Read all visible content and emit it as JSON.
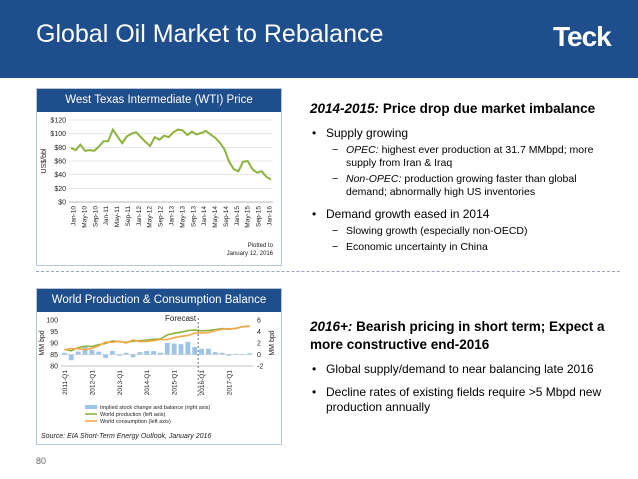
{
  "header": {
    "title": "Global Oil Market to Rebalance",
    "logo_text": "Teck",
    "bg_color": "#1f4e8c"
  },
  "page_number": "80",
  "chart_data": [
    {
      "type": "line",
      "title": "West Texas Intermediate (WTI) Price",
      "ylabel": "US$/bbl",
      "ylim": [
        0,
        120
      ],
      "y_ticks": [
        "$0",
        "$20",
        "$40",
        "$60",
        "$80",
        "$100",
        "$120"
      ],
      "x_tick_labels": [
        "Jan-10",
        "May-10",
        "Sep-10",
        "Jan-11",
        "May-11",
        "Sep-11",
        "Jan-12",
        "May-12",
        "Sep-12",
        "Jan-13",
        "May-13",
        "Sep-13",
        "Jan-14",
        "May-14",
        "Sep-14",
        "Jan-15",
        "May-15",
        "Sep-15",
        "Jan-16"
      ],
      "annotation": "Plotted to January 12, 2016",
      "series": [
        {
          "color": "#8db33e",
          "values": [
            79,
            76,
            84,
            75,
            76,
            75,
            81,
            89,
            89,
            106,
            96,
            86,
            96,
            100,
            102,
            95,
            88,
            82,
            95,
            91,
            97,
            95,
            102,
            106,
            105,
            98,
            103,
            99,
            101,
            104,
            99,
            94,
            87,
            77,
            59,
            48,
            45,
            59,
            60,
            48,
            43,
            45,
            37,
            33
          ]
        }
      ]
    },
    {
      "type": "bar",
      "title": "World Production & Consumption Balance",
      "ylabel": "MM bpd",
      "ylabel_right": "MM bpd",
      "ylim": [
        80,
        100
      ],
      "ylim_right": [
        -2,
        6
      ],
      "y_ticks": [
        "80",
        "85",
        "90",
        "95",
        "100"
      ],
      "y_ticks_right": [
        "-2",
        "0",
        "2",
        "4",
        "6"
      ],
      "x_tick_labels": [
        "2011-Q1",
        "2012-Q1",
        "2013-Q1",
        "2014-Q1",
        "2015-Q1",
        "2016-Q1",
        "2017-Q1"
      ],
      "forecast_label": "Forecast",
      "legend": [
        "Implied stock change and balance (right axis)",
        "World production (left axis)",
        "World consumption (left axis)"
      ],
      "source": "Source: EIA Short-Term Energy Outlook, January 2016",
      "series": [
        {
          "name": "Implied stock change and balance (right axis)",
          "color": "#9dc3e6",
          "axis": "right",
          "values": [
            0.3,
            -1.0,
            0.5,
            1.5,
            0.8,
            0.5,
            -0.6,
            0.6,
            -0.2,
            0.3,
            -0.5,
            0.4,
            0.6,
            0.6,
            0.3,
            2.0,
            1.9,
            1.8,
            2.2,
            1.3,
            1.0,
            1.0,
            0.4,
            0.3,
            -0.2,
            0.1,
            0.0,
            0.2
          ]
        },
        {
          "name": "World production (left axis)",
          "color": "#8db33e",
          "axis": "left",
          "values": [
            87.3,
            86.6,
            88.0,
            88.6,
            88.5,
            89.3,
            89.8,
            90.9,
            90.6,
            90.3,
            90.8,
            91.0,
            91.3,
            91.6,
            91.8,
            93.5,
            94.2,
            94.7,
            95.4,
            95.6,
            95.3,
            95.5,
            95.8,
            96.3,
            96.0,
            96.4,
            97.1,
            97.4
          ]
        },
        {
          "name": "World consumption (left axis)",
          "color": "#f4a74a",
          "axis": "left",
          "values": [
            87.0,
            87.6,
            87.5,
            87.1,
            87.7,
            88.8,
            90.4,
            90.3,
            90.8,
            90.0,
            91.3,
            90.6,
            90.7,
            91.0,
            91.5,
            91.5,
            92.3,
            92.9,
            93.2,
            94.3,
            94.3,
            94.5,
            95.4,
            96.0,
            96.2,
            96.3,
            97.1,
            97.2
          ]
        }
      ]
    }
  ],
  "right_top": {
    "heading_bold": "2014-2015:",
    "heading_rest": " Price drop due market imbalance",
    "bullets": [
      {
        "text": "Supply growing",
        "sub": [
          {
            "lead": "OPEC:",
            "rest": " highest ever production at 31.7 MMbpd; more supply from Iran & Iraq"
          },
          {
            "lead": "Non-OPEC:",
            "rest": " production growing faster than global demand; abnormally high US inventories"
          }
        ]
      },
      {
        "text": "Demand growth eased in 2014",
        "sub": [
          {
            "lead": "",
            "rest": "Slowing growth (especially non-OECD)"
          },
          {
            "lead": "",
            "rest": "Economic uncertainty in China"
          }
        ]
      }
    ]
  },
  "right_bottom": {
    "heading_bold": "2016+:",
    "heading_rest": " Bearish pricing in short term; Expect a more constructive end-2016",
    "bullets": [
      {
        "text": "Global supply/demand to near balancing late 2016"
      },
      {
        "text": "Decline rates of existing fields require >5 Mbpd new production annually"
      }
    ]
  }
}
